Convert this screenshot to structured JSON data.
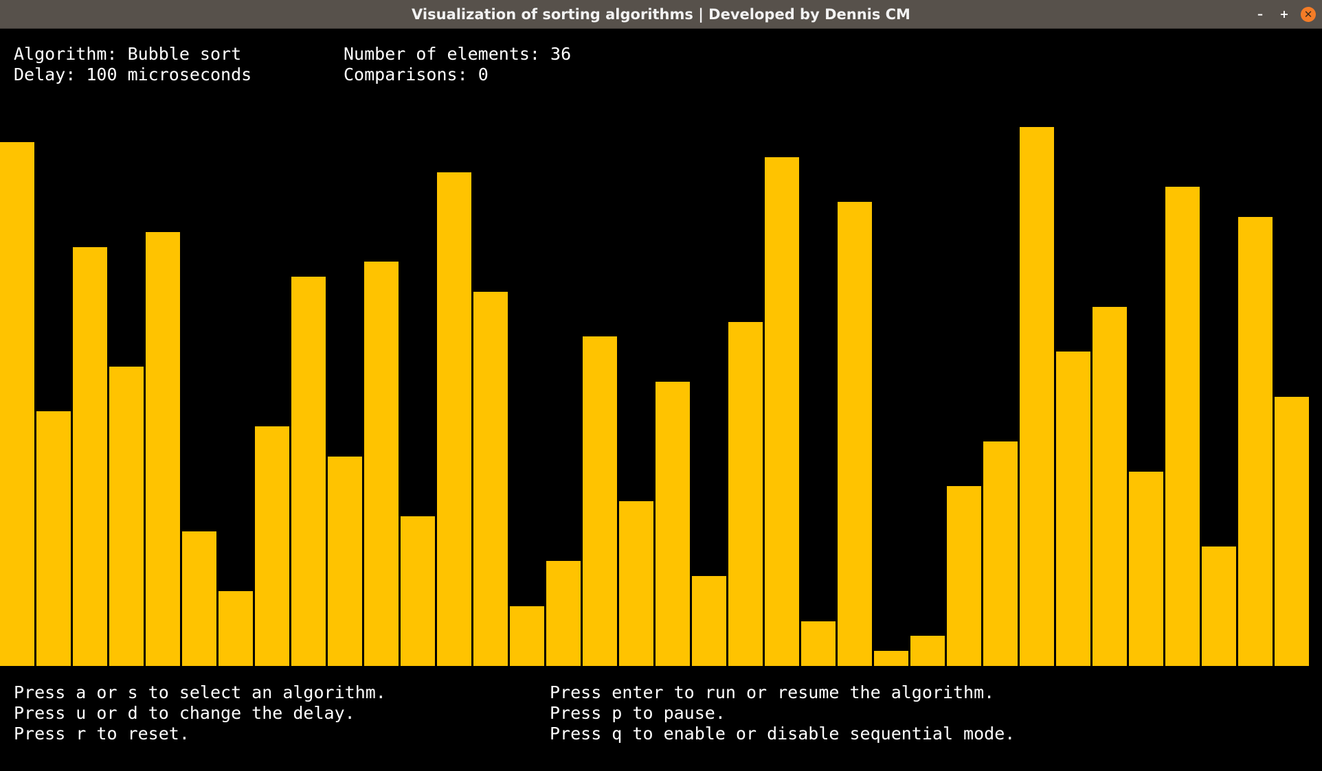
{
  "window": {
    "title": "Visualization of sorting algorithms | Developed by Dennis CM",
    "minimize_icon": "minimize-icon",
    "maximize_icon": "maximize-icon",
    "close_icon": "close-icon",
    "minimize_glyph": "–",
    "maximize_glyph": "+",
    "close_glyph": "✕"
  },
  "info": {
    "algorithm_label": "Algorithm:",
    "algorithm_value": "Bubble sort",
    "delay_label": "Delay:",
    "delay_value": "100 microseconds",
    "elements_label": "Number of elements:",
    "elements_value": "36",
    "comparisons_label": "Comparisons:",
    "comparisons_value": "0"
  },
  "help": {
    "line1": "Press a or s to select an algorithm.",
    "line2": "Press u or d to change the delay.",
    "line3": "Press r to reset.",
    "line4": "Press enter to run or resume the algorithm.",
    "line5": "Press p to pause.",
    "line6": "Press q to enable or disable sequential mode."
  },
  "colors": {
    "bar": "#ffc300",
    "background": "#000000",
    "text": "#ffffff",
    "titlebar": "#57514b",
    "close_button": "#f47c27"
  },
  "chart_data": {
    "type": "bar",
    "values": [
      35,
      17,
      28,
      20,
      29,
      9,
      5,
      16,
      26,
      14,
      27,
      10,
      33,
      25,
      4,
      7,
      22,
      11,
      19,
      6,
      23,
      34,
      3,
      31,
      1,
      2,
      12,
      15,
      36,
      21,
      24,
      13,
      32,
      8,
      30,
      18
    ],
    "ylim": [
      0,
      36
    ]
  }
}
